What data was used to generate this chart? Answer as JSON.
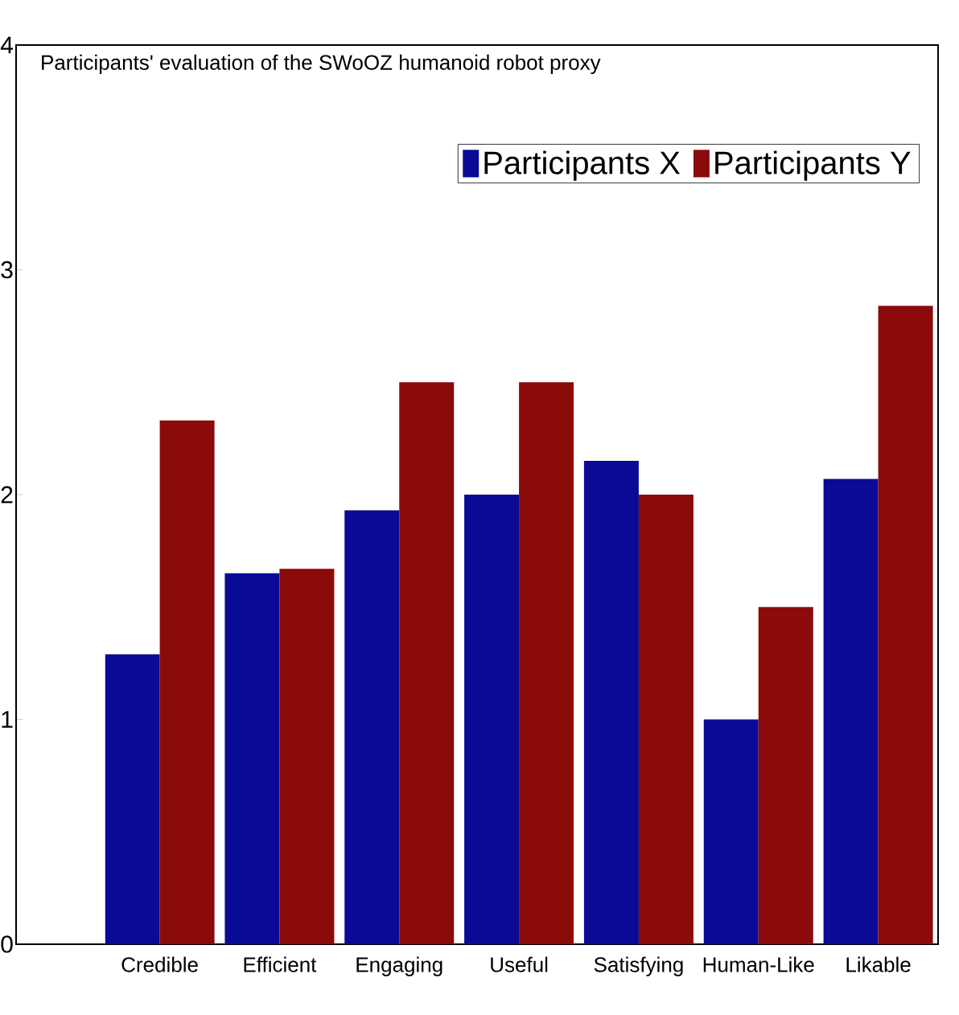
{
  "chart_data": {
    "type": "bar",
    "title": "Participants' evaluation of  the SWoOZ humanoid robot proxy",
    "categories": [
      "Credible",
      "Efficient",
      "Engaging",
      "Useful",
      "Satisfying",
      "Human-Like",
      "Likable"
    ],
    "series": [
      {
        "name": "Participants X",
        "color": "#0a0a96",
        "values": [
          1.29,
          1.65,
          1.93,
          2.0,
          2.15,
          1.0,
          2.07
        ]
      },
      {
        "name": "Participants Y",
        "color": "#8b0a0a",
        "values": [
          2.33,
          1.67,
          2.5,
          2.5,
          2.0,
          1.5,
          2.84
        ]
      }
    ],
    "ylim": [
      0,
      4
    ],
    "yticks": [
      0,
      1,
      2,
      3,
      4
    ],
    "legend": "top right"
  }
}
